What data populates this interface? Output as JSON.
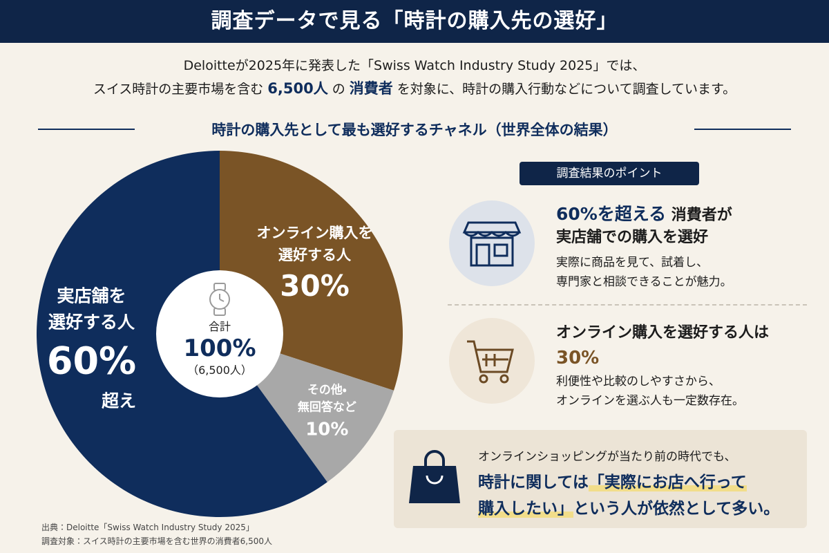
{
  "header": {
    "title": "調査データで見る「時計の購入先の選好」"
  },
  "intro": {
    "line1": "Deloitteが2025年に発表した「Swiss Watch Industry Study 2025」では、",
    "line2": [
      "スイス時計の主要市場を含む",
      "6,500人",
      "の",
      "消費者",
      "を対象に、時計の購入行動などについて調査しています。"
    ]
  },
  "section_title": "時計の購入先として最も選好するチャネル（世界全体の結果）",
  "chart_data": {
    "type": "pie",
    "categories": [
      "オンライン購入を\n選好する人",
      "その他・\n無回答など",
      "実店舗を\n選好する人"
    ],
    "values": [
      30,
      10,
      60
    ],
    "value_labels": [
      "30%",
      "10%",
      "60%"
    ],
    "colors": [
      "#7a5426",
      "#a8a8a8",
      "#0f2d5c"
    ],
    "annotation": "超え",
    "center": {
      "label": "合計",
      "total": "100%",
      "note": "（6,500人）"
    }
  },
  "points": {
    "badge": "調査結果のポイント",
    "items": [
      {
        "head": [
          "60%を超える",
          "消費者が"
        ],
        "head2": "実店舗での購入を選好",
        "body": "実際に商品を見て、試着し、\n専門家と相談できることが魅力。"
      },
      {
        "head": [
          "オンライン購入を選好する人は"
        ],
        "head2": "30%",
        "body": "利便性や比較のしやすさから、\nオンラインを選ぶ人も一定数存在。"
      }
    ]
  },
  "conclusion": {
    "line1": "オンラインショッピングが当たり前の時代でも、",
    "line2": [
      "時計に関しては",
      "「実際にお店へ行って"
    ],
    "line3": [
      "購入したい」",
      "という人が依然として多い。"
    ]
  },
  "footer": {
    "source": "出典：Deloitte「Swiss Watch Industry Study 2025」",
    "target": "調査対象：スイス時計の主要市場を含む世界の消費者6,500人"
  }
}
